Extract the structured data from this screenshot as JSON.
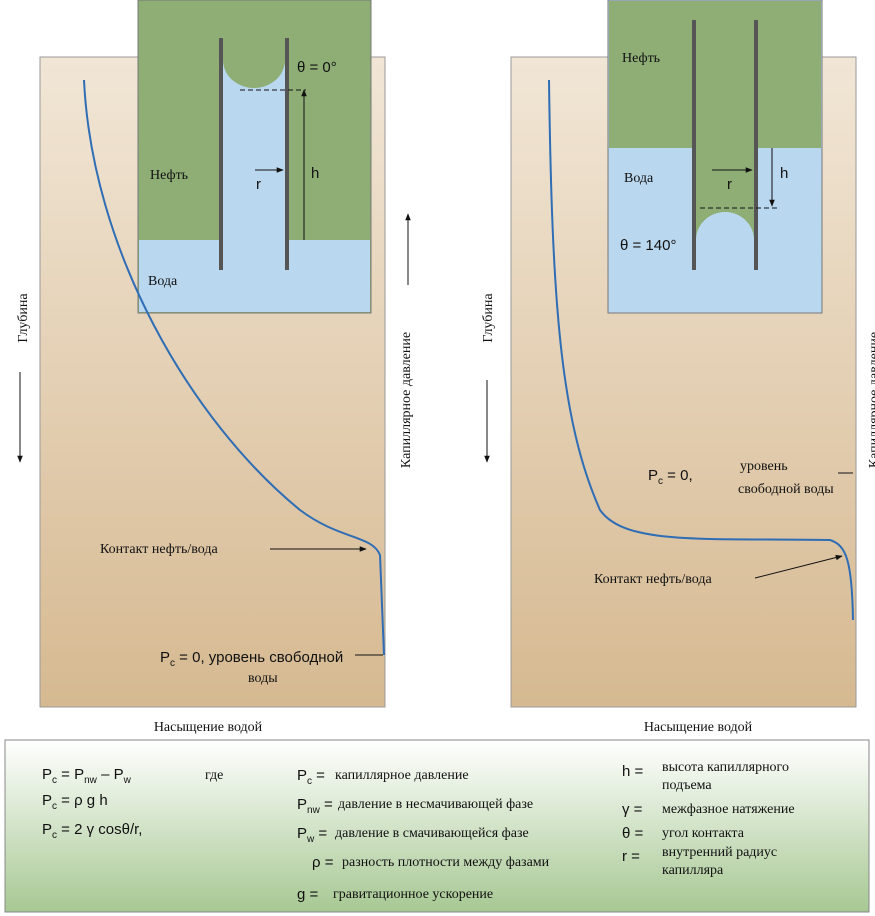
{
  "left": {
    "inset": {
      "angle": "θ = 0°",
      "oil": "Нефть",
      "radius": "r",
      "height": "h",
      "water": "Вода"
    },
    "depth": "Глубина",
    "pressure": "Капиллярное давление",
    "contact": "Контакт нефть/вода",
    "free_level": [
      {
        "t": "P"
      },
      {
        "sub": "c"
      },
      {
        "t": " = 0, уровень свободной"
      }
    ],
    "free_level_2": [
      "воды"
    ],
    "x_label": "Насыщение водой"
  },
  "right": {
    "inset": {
      "angle": "θ = 140°",
      "oil": "Нефть",
      "radius": "r",
      "height": "h",
      "water": "Вода"
    },
    "depth": "Глубина",
    "pressure": "Капиллярное давление",
    "contact": "Контакт нефть/вода",
    "free_level": [
      {
        "t": "P"
      },
      {
        "sub": "c"
      },
      {
        "t": " = 0,"
      }
    ],
    "free_level_2": [
      "уровень",
      "свободной воды"
    ],
    "x_label": "Насыщение водой"
  },
  "legend": {
    "formulas": [
      [
        {
          "t": "P"
        },
        {
          "sub": "c"
        },
        {
          "t": " = P"
        },
        {
          "sub": "nw"
        },
        {
          "t": " – P"
        },
        {
          "sub": "w"
        }
      ],
      [
        {
          "t": "P"
        },
        {
          "sub": "c"
        },
        {
          "t": " =   ρ g h"
        }
      ],
      [
        {
          "t": "P"
        },
        {
          "sub": "c"
        },
        {
          "t": " = 2 γ cosθ/r,"
        }
      ]
    ],
    "where": "где",
    "definitions": [
      {
        "symbol": [
          {
            "t": "P"
          },
          {
            "sub": "c"
          },
          {
            "t": " ="
          }
        ],
        "lines": [
          "капиллярное давление"
        ]
      },
      {
        "symbol": [
          {
            "t": "P"
          },
          {
            "sub": "nw"
          },
          {
            "t": " ="
          }
        ],
        "lines": [
          "давление в несмачивающей фазе"
        ]
      },
      {
        "symbol": [
          {
            "t": "P"
          },
          {
            "sub": "w"
          },
          {
            "t": " ="
          }
        ],
        "lines": [
          "давление в смачивающейся фазе"
        ]
      },
      {
        "symbol": [
          {
            "t": "ρ ="
          }
        ],
        "lines": [
          "разность плотности между фазами"
        ]
      },
      {
        "symbol": [
          {
            "t": "g ="
          }
        ],
        "lines": [
          "гравитационное ускорение"
        ]
      },
      {
        "symbol": [
          {
            "t": "h ="
          }
        ],
        "lines": [
          "высота капиллярного",
          "подъема"
        ]
      },
      {
        "symbol": [
          {
            "t": "γ ="
          }
        ],
        "lines": [
          "межфазное натяжение"
        ]
      },
      {
        "symbol": [
          {
            "t": "θ ="
          }
        ],
        "lines": [
          "угол контакта"
        ]
      },
      {
        "symbol": [
          {
            "t": "r ="
          }
        ],
        "lines": [
          "внутренний радиус",
          "капилляра"
        ]
      }
    ]
  }
}
